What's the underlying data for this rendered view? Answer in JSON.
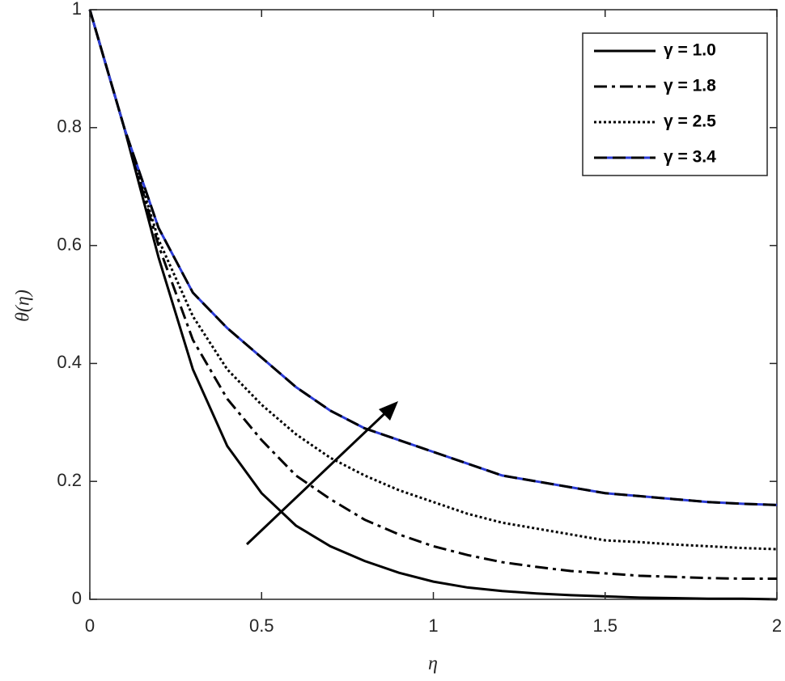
{
  "chart_data": {
    "type": "line",
    "xlabel": "η",
    "ylabel": "θ(η)",
    "x": [
      0,
      0.1,
      0.2,
      0.3,
      0.4,
      0.5,
      0.6,
      0.7,
      0.8,
      0.9,
      1.0,
      1.1,
      1.2,
      1.3,
      1.4,
      1.5,
      1.6,
      1.7,
      1.8,
      1.9,
      2.0
    ],
    "series": [
      {
        "name": "γ = 1.0",
        "color": "#000000",
        "dash": "solid",
        "values": [
          1,
          0.8,
          0.58,
          0.39,
          0.26,
          0.18,
          0.125,
          0.09,
          0.065,
          0.045,
          0.03,
          0.02,
          0.014,
          0.01,
          0.007,
          0.005,
          0.003,
          0.002,
          0.001,
          0.001,
          0
        ]
      },
      {
        "name": "γ = 1.8",
        "color": "#000000",
        "dash": "dashdot",
        "values": [
          1,
          0.8,
          0.6,
          0.44,
          0.34,
          0.27,
          0.21,
          0.17,
          0.135,
          0.11,
          0.09,
          0.075,
          0.063,
          0.055,
          0.048,
          0.044,
          0.04,
          0.038,
          0.036,
          0.035,
          0.035
        ]
      },
      {
        "name": "γ = 2.5",
        "color": "#000000",
        "dash": "dotted",
        "values": [
          1,
          0.8,
          0.61,
          0.48,
          0.39,
          0.33,
          0.28,
          0.24,
          0.21,
          0.185,
          0.165,
          0.145,
          0.13,
          0.12,
          0.11,
          0.1,
          0.097,
          0.093,
          0.09,
          0.087,
          0.085
        ]
      },
      {
        "name": "γ = 3.4",
        "color": "#000000",
        "underlay": "#2b3bd6",
        "dash": "dashed",
        "values": [
          1,
          0.8,
          0.63,
          0.52,
          0.46,
          0.41,
          0.36,
          0.32,
          0.29,
          0.27,
          0.25,
          0.23,
          0.21,
          0.2,
          0.19,
          0.18,
          0.175,
          0.17,
          0.165,
          0.162,
          0.16
        ]
      }
    ],
    "xlim": [
      0,
      2
    ],
    "xticks": [
      0,
      0.5,
      1,
      1.5,
      2
    ],
    "ylim": [
      0,
      1
    ],
    "yticks": [
      0,
      0.2,
      0.4,
      0.6,
      0.8,
      1
    ],
    "grid": false,
    "legend": "upper right"
  }
}
